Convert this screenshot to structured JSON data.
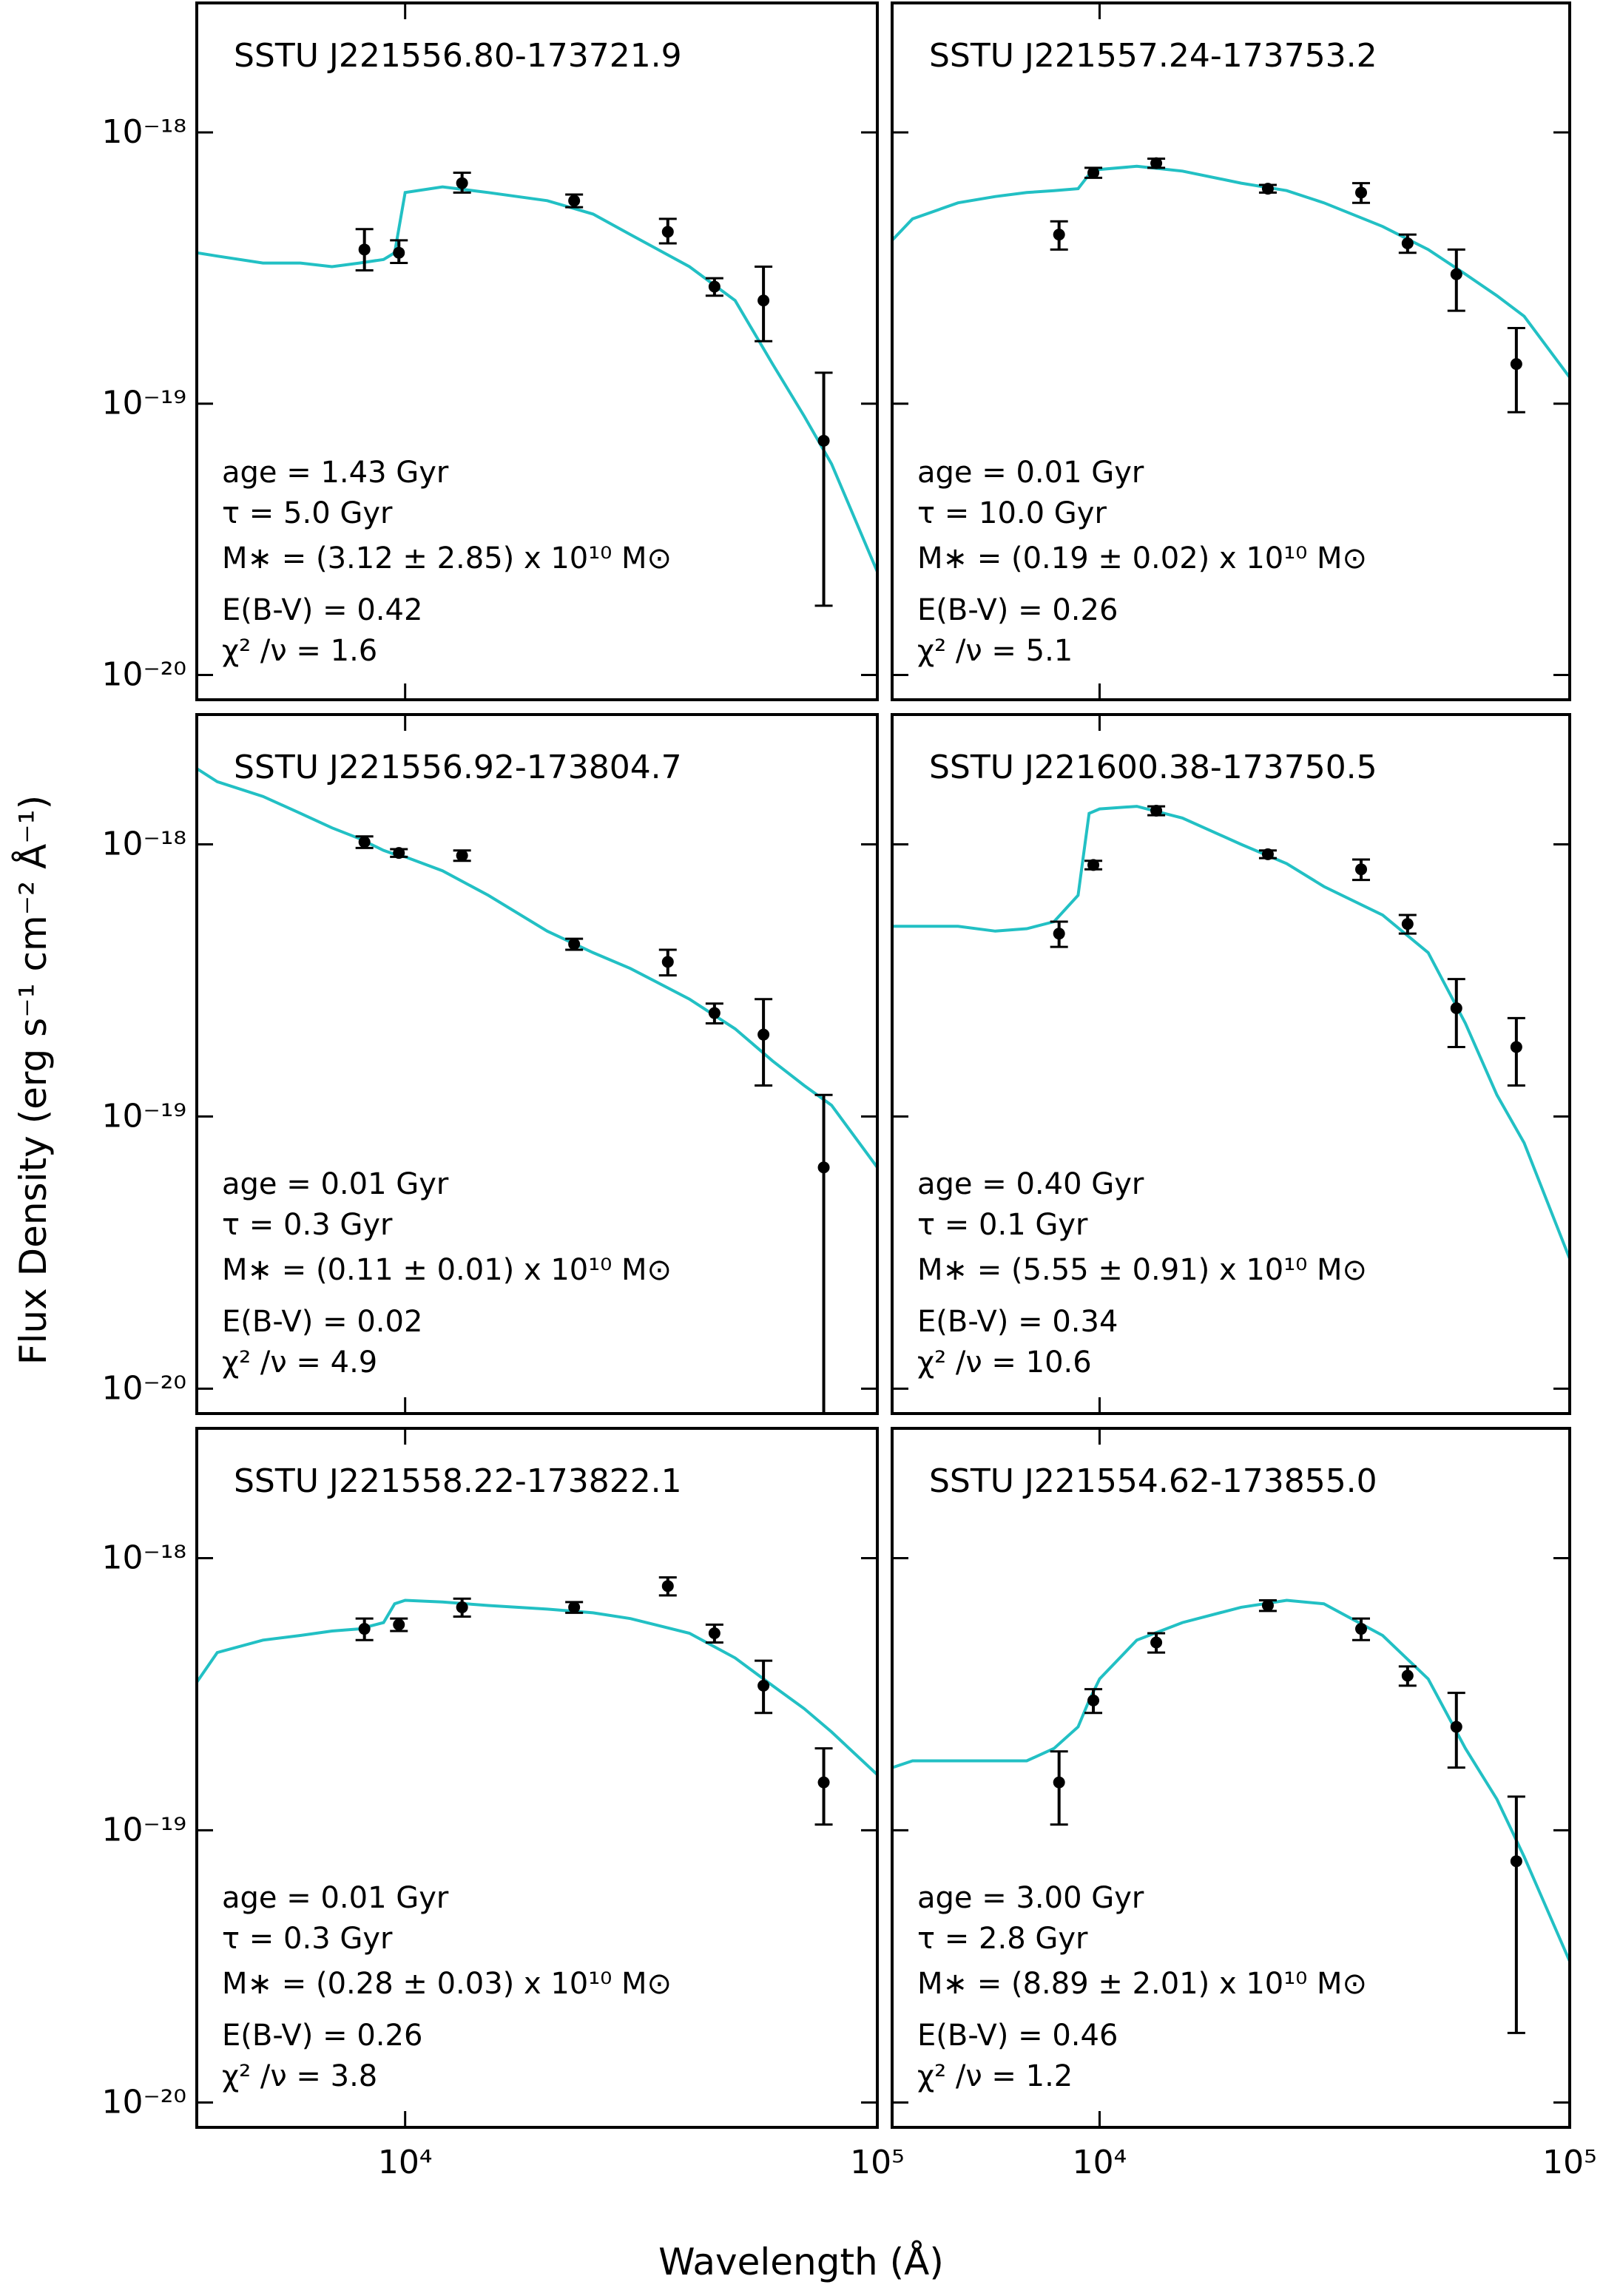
{
  "chart_data": {
    "type": "scatter",
    "xlabel": "Wavelength (Å)",
    "ylabel": "Flux Density (erg s⁻¹ cm⁻² Å⁻¹)",
    "log_x": true,
    "log_y": true,
    "xlim": [
      3620,
      100000
    ],
    "ylim": [
      8.1e-21,
      3e-18
    ],
    "xticks": [
      {
        "value": 10000,
        "label": "10⁴"
      },
      {
        "value": 100000,
        "label": "10⁵"
      }
    ],
    "yticks": [
      {
        "value": 1e-20,
        "label": "10⁻²⁰"
      },
      {
        "value": 1e-19,
        "label": "10⁻¹⁹"
      },
      {
        "value": 1e-18,
        "label": "10⁻¹⁸"
      }
    ],
    "marker_color": "#000000",
    "line_color": "#22c0c4",
    "panels": [
      {
        "title": "SSTU J221556.80-173721.9",
        "annotations": [
          "age = 1.43 Gyr",
          "τ = 5.0 Gyr",
          "M∗ = (3.12 ± 2.85) x 10¹⁰ M⊙",
          "E(B-V) = 0.42",
          "χ² /ν = 1.6"
        ],
        "x": [
          8200,
          9700,
          13200,
          22800,
          36000,
          45200,
          57400,
          77000
        ],
        "values": [
          3.7e-19,
          3.6e-19,
          6.5e-19,
          5.6e-19,
          4.3e-19,
          2.7e-19,
          2.4e-19,
          7.3e-20
        ],
        "err_minus": [
          6e-20,
          3e-20,
          5e-20,
          3e-20,
          4e-20,
          2e-20,
          7e-20,
          5.5e-20
        ],
        "err_plus": [
          7e-20,
          4e-20,
          6e-20,
          3e-20,
          5e-20,
          2e-20,
          8e-20,
          5.7e-20
        ],
        "model": {
          "x": [
            3620,
            4000,
            5000,
            6000,
            7000,
            8000,
            9000,
            9500,
            10000,
            12000,
            15000,
            20000,
            25000,
            30000,
            40000,
            50000,
            60000,
            70000,
            80000,
            100000
          ],
          "values": [
            3.6e-19,
            3.5e-19,
            3.3e-19,
            3.3e-19,
            3.2e-19,
            3.3e-19,
            3.4e-19,
            3.6e-19,
            6e-19,
            6.3e-19,
            6e-19,
            5.6e-19,
            5e-19,
            4.2e-19,
            3.2e-19,
            2.4e-19,
            1.4e-19,
            9e-20,
            6e-20,
            2.4e-20
          ]
        }
      },
      {
        "title": "SSTU J221557.24-173753.2",
        "annotations": [
          "age = 0.01 Gyr",
          "τ = 10.0 Gyr",
          "M∗ = (0.19 ± 0.02) x 10¹⁰ M⊙",
          "E(B-V) = 0.26",
          "χ² /ν = 5.1"
        ],
        "x": [
          8200,
          9700,
          13200,
          22800,
          36000,
          45200,
          57400,
          77000
        ],
        "values": [
          4.2e-19,
          7.1e-19,
          7.7e-19,
          6.2e-19,
          6e-19,
          3.9e-19,
          3e-19,
          1.4e-19
        ],
        "err_minus": [
          5e-20,
          3e-20,
          3e-20,
          2e-20,
          5e-20,
          3e-20,
          8e-20,
          4.7e-20
        ],
        "err_plus": [
          5e-20,
          3e-20,
          3e-20,
          2e-20,
          5e-20,
          3e-20,
          7e-20,
          5e-20
        ],
        "model": {
          "x": [
            3620,
            4000,
            5000,
            6000,
            7000,
            8000,
            9000,
            9500,
            10000,
            12000,
            15000,
            20000,
            25000,
            30000,
            40000,
            50000,
            60000,
            70000,
            80000,
            100000
          ],
          "values": [
            4e-19,
            4.8e-19,
            5.5e-19,
            5.8e-19,
            6e-19,
            6.1e-19,
            6.2e-19,
            7e-19,
            7.3e-19,
            7.5e-19,
            7.2e-19,
            6.5e-19,
            6.1e-19,
            5.5e-19,
            4.5e-19,
            3.7e-19,
            3e-19,
            2.5e-19,
            2.1e-19,
            1.25e-19
          ]
        }
      },
      {
        "title": "SSTU J221556.92-173804.7",
        "annotations": [
          "age = 0.01 Gyr",
          "τ = 0.3 Gyr",
          "M∗ = (0.11 ± 0.01) x 10¹⁰ M⊙",
          "E(B-V) = 0.02",
          "χ² /ν = 4.9"
        ],
        "x": [
          8200,
          9700,
          13200,
          22800,
          36000,
          45200,
          57400,
          77000
        ],
        "values": [
          1.02e-18,
          9.3e-19,
          9.1e-19,
          4.3e-19,
          3.7e-19,
          2.4e-19,
          2e-19,
          6.5e-20
        ],
        "err_minus": [
          5e-20,
          3e-20,
          4e-20,
          2e-20,
          4e-20,
          2e-20,
          7e-20,
          6.4e-20
        ],
        "err_plus": [
          5e-20,
          3e-20,
          4e-20,
          2e-20,
          4e-20,
          2e-20,
          7e-20,
          5.5e-20
        ],
        "model": {
          "x": [
            3620,
            4000,
            5000,
            6000,
            7000,
            8000,
            9000,
            9500,
            10000,
            12000,
            15000,
            20000,
            25000,
            30000,
            40000,
            50000,
            60000,
            70000,
            80000,
            100000
          ],
          "values": [
            1.9e-18,
            1.7e-18,
            1.5e-18,
            1.3e-18,
            1.15e-18,
            1.05e-18,
            9.5e-19,
            9.2e-19,
            9e-19,
            8e-19,
            6.5e-19,
            4.8e-19,
            4e-19,
            3.5e-19,
            2.7e-19,
            2.1e-19,
            1.6e-19,
            1.3e-19,
            1.1e-19,
            6.5e-20
          ]
        }
      },
      {
        "title": "SSTU J221600.38-173750.5",
        "annotations": [
          "age = 0.40 Gyr",
          "τ = 0.1 Gyr",
          "M∗ = (5.55 ± 0.91) x 10¹⁰ M⊙",
          "E(B-V) = 0.34",
          "χ² /ν = 10.6"
        ],
        "x": [
          8200,
          9700,
          13200,
          22800,
          36000,
          45200,
          57400,
          77000
        ],
        "values": [
          4.7e-19,
          8.4e-19,
          1.33e-18,
          9.2e-19,
          8.1e-19,
          5.1e-19,
          2.5e-19,
          1.8e-19
        ],
        "err_minus": [
          5e-20,
          3e-20,
          5e-20,
          3e-20,
          7e-20,
          4e-20,
          7e-20,
          5e-20
        ],
        "err_plus": [
          5e-20,
          3e-20,
          5e-20,
          3e-20,
          7e-20,
          4e-20,
          7e-20,
          5e-20
        ],
        "model": {
          "x": [
            3620,
            4000,
            5000,
            6000,
            7000,
            8000,
            9000,
            9500,
            10000,
            12000,
            15000,
            20000,
            25000,
            30000,
            40000,
            50000,
            60000,
            70000,
            80000,
            100000
          ],
          "values": [
            5e-19,
            5e-19,
            5e-19,
            4.8e-19,
            4.9e-19,
            5.2e-19,
            6.5e-19,
            1.3e-18,
            1.35e-18,
            1.38e-18,
            1.25e-18,
            1e-18,
            8.5e-19,
            7e-19,
            5.5e-19,
            4e-19,
            2.2e-19,
            1.2e-19,
            8e-20,
            3e-20
          ]
        }
      },
      {
        "title": "SSTU J221558.22-173822.1",
        "annotations": [
          "age = 0.01 Gyr",
          "τ = 0.3 Gyr",
          "M∗ = (0.28 ± 0.03) x 10¹⁰ M⊙",
          "E(B-V) = 0.26",
          "χ² /ν = 3.8"
        ],
        "x": [
          8200,
          9700,
          13200,
          22800,
          36000,
          45200,
          57400,
          77000
        ],
        "values": [
          5.5e-19,
          5.7e-19,
          6.6e-19,
          6.6e-19,
          7.9e-19,
          5.3e-19,
          3.4e-19,
          1.5e-19
        ],
        "err_minus": [
          5e-20,
          3e-20,
          5e-20,
          3e-20,
          6e-20,
          4e-20,
          7e-20,
          4.5e-20
        ],
        "err_plus": [
          5e-20,
          3e-20,
          5e-20,
          3e-20,
          6e-20,
          4e-20,
          8e-20,
          5e-20
        ],
        "model": {
          "x": [
            3620,
            4000,
            5000,
            6000,
            7000,
            8000,
            9000,
            9500,
            10000,
            12000,
            15000,
            20000,
            25000,
            30000,
            40000,
            50000,
            60000,
            70000,
            80000,
            100000
          ],
          "values": [
            3.5e-19,
            4.5e-19,
            5e-19,
            5.2e-19,
            5.4e-19,
            5.5e-19,
            5.8e-19,
            6.8e-19,
            7e-19,
            6.9e-19,
            6.7e-19,
            6.5e-19,
            6.3e-19,
            6e-19,
            5.3e-19,
            4.3e-19,
            3.4e-19,
            2.8e-19,
            2.3e-19,
            1.6e-19
          ]
        }
      },
      {
        "title": "SSTU J221554.62-173855.0",
        "annotations": [
          "age = 3.00 Gyr",
          "τ = 2.8 Gyr",
          "M∗ = (8.89 ± 2.01) x 10¹⁰ M⊙",
          "E(B-V) = 0.46",
          "χ² /ν = 1.2"
        ],
        "x": [
          8200,
          9700,
          13200,
          22800,
          36000,
          45200,
          57400,
          77000
        ],
        "values": [
          1.5e-19,
          3e-19,
          4.9e-19,
          6.7e-19,
          5.5e-19,
          3.7e-19,
          2.4e-19,
          7.7e-20
        ],
        "err_minus": [
          4.5e-20,
          3e-20,
          4e-20,
          3e-20,
          5e-20,
          3e-20,
          7e-20,
          5.9e-20
        ],
        "err_plus": [
          4.5e-20,
          3e-20,
          4e-20,
          3e-20,
          5e-20,
          3e-20,
          8e-20,
          5.6e-20
        ],
        "model": {
          "x": [
            3620,
            4000,
            5000,
            6000,
            7000,
            8000,
            9000,
            9500,
            10000,
            12000,
            15000,
            20000,
            25000,
            30000,
            40000,
            50000,
            60000,
            70000,
            80000,
            100000
          ],
          "values": [
            1.7e-19,
            1.8e-19,
            1.8e-19,
            1.8e-19,
            1.8e-19,
            2e-19,
            2.4e-19,
            3e-19,
            3.6e-19,
            5e-19,
            5.8e-19,
            6.6e-19,
            7e-19,
            6.8e-19,
            5.2e-19,
            3.6e-19,
            2e-19,
            1.3e-19,
            8e-20,
            3.3e-20
          ]
        }
      }
    ]
  }
}
